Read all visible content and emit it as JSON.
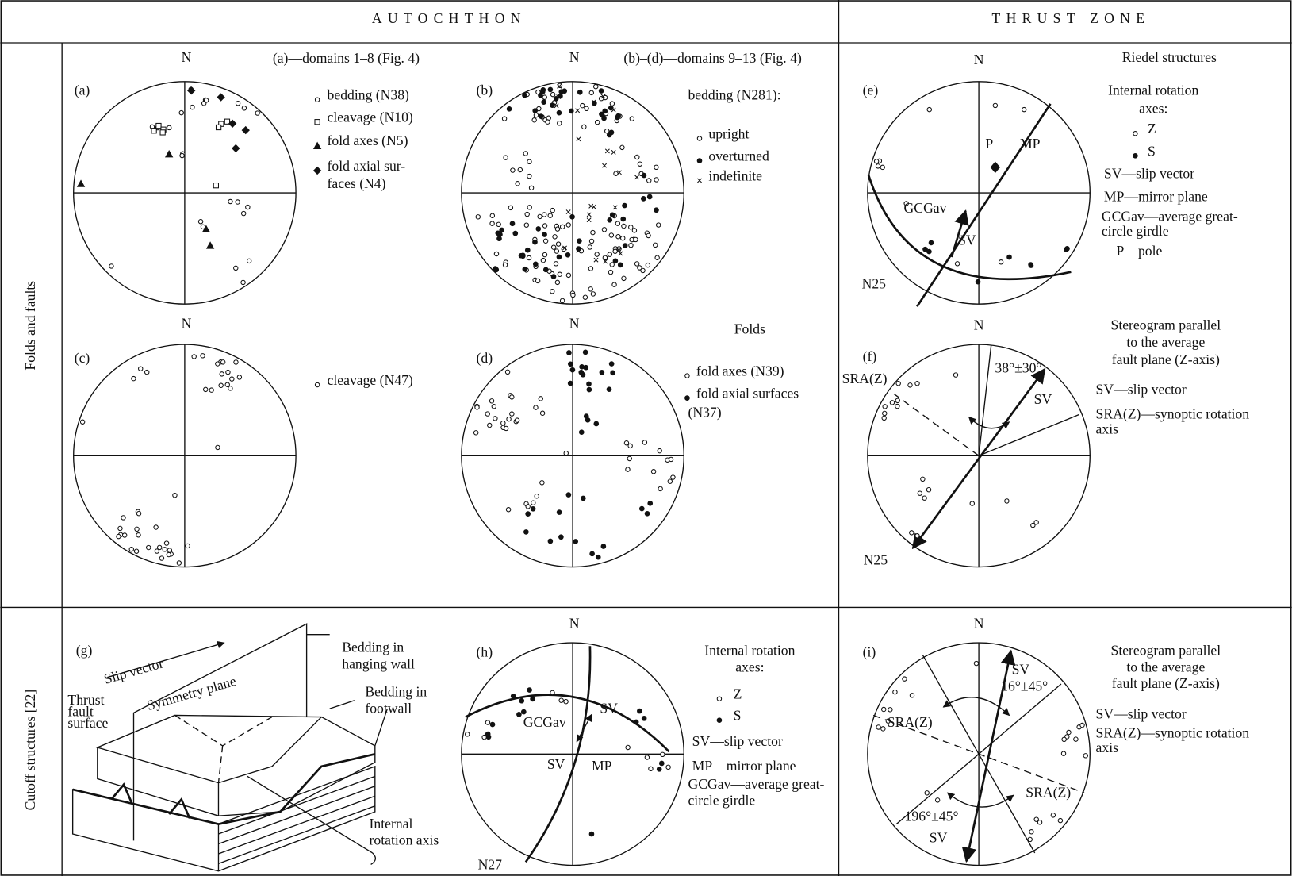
{
  "header": {
    "autochthon": "AUTOCHTHON",
    "thrust_zone": "THRUST ZONE"
  },
  "rows": [
    "Folds and faults",
    "Cutoff structures [22]"
  ],
  "panels": {
    "a": {
      "label": "(a)",
      "north": "N",
      "caption": "(a)—domains 1–8 (Fig. 4)",
      "legend": [
        "bedding (N38)",
        "cleavage (N10)",
        "fold axes (N5)",
        "fold axial sur-",
        "faces (N4)"
      ]
    },
    "b": {
      "label": "(b)",
      "north": "N",
      "caption": "(b)–(d)—domains 9–13 (Fig. 4)",
      "legend": [
        "bedding (N281):",
        "upright",
        "overturned",
        "indefinite"
      ]
    },
    "c": {
      "label": "(c)",
      "north": "N",
      "legend": [
        "cleavage (N47)"
      ]
    },
    "d": {
      "label": "(d)",
      "north": "N",
      "title": "Folds",
      "legend": [
        "fold axes (N39)",
        "fold axial surfaces",
        "(N37)"
      ]
    },
    "e": {
      "label": "(e)",
      "north": "N",
      "title": "Riedel structures",
      "legend": [
        "Internal rotation",
        "axes:",
        "Z",
        "S",
        "SV—slip vector",
        "MP—mirror plane",
        "GCGav—average great-",
        "circle girdle",
        "P—pole"
      ],
      "annotations": [
        "P",
        "MP",
        "GCGav",
        "SV",
        "N25"
      ]
    },
    "f": {
      "label": "(f)",
      "north": "N",
      "legend": [
        "Stereogram parallel",
        "to the average",
        "fault plane (Z-axis)",
        "SV—slip vector",
        "SRA(Z)—synoptic rotation",
        "axis"
      ],
      "annotations": [
        "38°±30°",
        "SV",
        "SRA(Z)",
        "N25"
      ]
    },
    "g": {
      "label": "(g)",
      "annotations": [
        "Slip vector",
        "Symmetry plane",
        "Thrust",
        "fault",
        "surface",
        "Bedding in",
        "hanging wall",
        "Bedding in",
        "footwall",
        "Internal",
        "rotation axis"
      ]
    },
    "h": {
      "label": "(h)",
      "north": "N",
      "legend": [
        "Internal rotation",
        "axes:",
        "Z",
        "S",
        "SV—slip vector",
        "MP—mirror plane",
        "GCGav—average great-",
        "circle girdle"
      ],
      "annotations": [
        "GCGav",
        "SV",
        "SV",
        "MP",
        "N27"
      ]
    },
    "i": {
      "label": "(i)",
      "north": "N",
      "legend": [
        "Stereogram parallel",
        "to the average",
        "fault plane (Z-axis)",
        "SV—slip vector",
        "SRA(Z)—synoptic rotation",
        "axis"
      ],
      "annotations": [
        "SV",
        "16°±45°",
        "SRA(Z)",
        "SRA(Z)",
        "196°±45°",
        "SV"
      ]
    }
  }
}
